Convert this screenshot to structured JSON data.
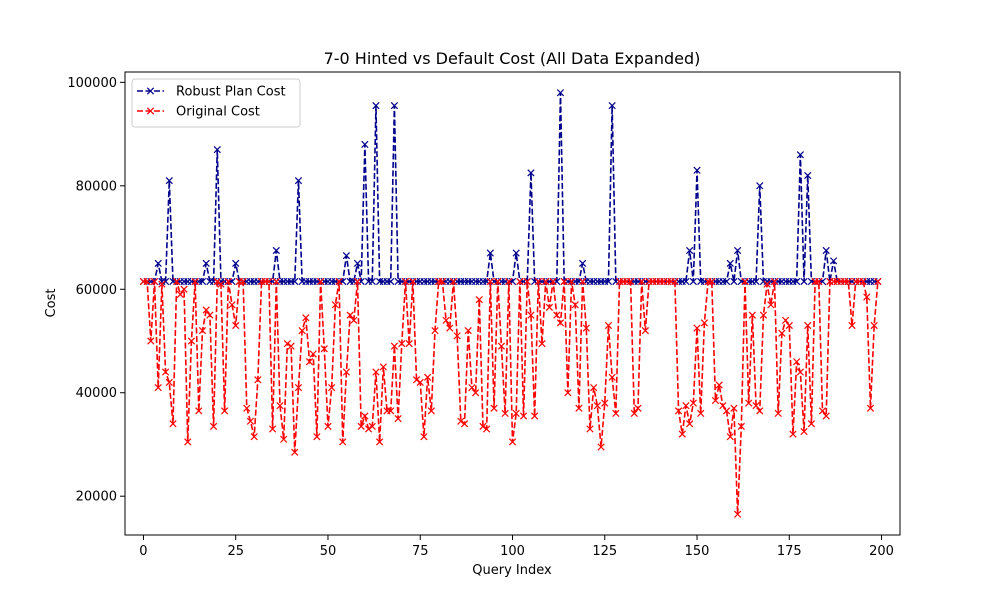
{
  "chart_data": {
    "type": "line",
    "title": "7-0 Hinted vs Default Cost (All Data Expanded)",
    "xlabel": "Query Index",
    "ylabel": "Cost",
    "xlim": [
      -5,
      205
    ],
    "ylim": [
      12500,
      102000
    ],
    "xticks": [
      0,
      25,
      50,
      75,
      100,
      125,
      150,
      175,
      200
    ],
    "yticks": [
      20000,
      40000,
      60000,
      80000,
      100000
    ],
    "grid": false,
    "legend": "top-left",
    "series": [
      {
        "name": "Robust Plan Cost",
        "color": "#00008b",
        "style": "dashed",
        "marker": "x",
        "default": 61500,
        "overrides": [
          [
            4,
            65000
          ],
          [
            7,
            81000
          ],
          [
            17,
            65000
          ],
          [
            20,
            87000
          ],
          [
            25,
            65000
          ],
          [
            36,
            67500
          ],
          [
            42,
            81000
          ],
          [
            55,
            66500
          ],
          [
            58,
            65000
          ],
          [
            60,
            88000
          ],
          [
            63,
            95500
          ],
          [
            68,
            95500
          ],
          [
            94,
            67000
          ],
          [
            101,
            67000
          ],
          [
            105,
            82500
          ],
          [
            113,
            98000
          ],
          [
            119,
            65000
          ],
          [
            127,
            95500
          ],
          [
            148,
            67500
          ],
          [
            150,
            83000
          ],
          [
            159,
            65000
          ],
          [
            161,
            67500
          ],
          [
            167,
            80000
          ],
          [
            178,
            86000
          ],
          [
            180,
            82000
          ],
          [
            185,
            67500
          ],
          [
            187,
            65500
          ]
        ]
      },
      {
        "name": "Original Cost",
        "color": "#ff0000",
        "style": "dashed",
        "marker": "x",
        "default": 61500,
        "overrides": [
          [
            2,
            50000
          ],
          [
            4,
            41000
          ],
          [
            5,
            61000
          ],
          [
            6,
            44000
          ],
          [
            7,
            42000
          ],
          [
            8,
            34000
          ],
          [
            10,
            59000
          ],
          [
            11,
            60000
          ],
          [
            12,
            30500
          ],
          [
            13,
            50000
          ],
          [
            15,
            36500
          ],
          [
            16,
            52000
          ],
          [
            17,
            56000
          ],
          [
            18,
            55000
          ],
          [
            19,
            33500
          ],
          [
            21,
            61000
          ],
          [
            22,
            36500
          ],
          [
            24,
            57000
          ],
          [
            25,
            53000
          ],
          [
            28,
            37000
          ],
          [
            29,
            34500
          ],
          [
            30,
            31500
          ],
          [
            31,
            42500
          ],
          [
            35,
            33000
          ],
          [
            37,
            37500
          ],
          [
            38,
            31000
          ],
          [
            39,
            49500
          ],
          [
            40,
            49000
          ],
          [
            41,
            28500
          ],
          [
            42,
            41000
          ],
          [
            43,
            52000
          ],
          [
            44,
            54500
          ],
          [
            45,
            46000
          ],
          [
            46,
            47500
          ],
          [
            47,
            31500
          ],
          [
            49,
            48500
          ],
          [
            50,
            33500
          ],
          [
            51,
            41000
          ],
          [
            52,
            57000
          ],
          [
            54,
            30500
          ],
          [
            55,
            44000
          ],
          [
            56,
            55000
          ],
          [
            57,
            54000
          ],
          [
            59,
            33500
          ],
          [
            60,
            35500
          ],
          [
            61,
            33000
          ],
          [
            62,
            33500
          ],
          [
            63,
            44000
          ],
          [
            64,
            30500
          ],
          [
            65,
            45000
          ],
          [
            66,
            36500
          ],
          [
            67,
            36500
          ],
          [
            68,
            49000
          ],
          [
            69,
            35000
          ],
          [
            70,
            49500
          ],
          [
            72,
            49500
          ],
          [
            74,
            42500
          ],
          [
            75,
            42000
          ],
          [
            76,
            31500
          ],
          [
            77,
            43000
          ],
          [
            78,
            36500
          ],
          [
            79,
            52000
          ],
          [
            82,
            54000
          ],
          [
            83,
            52500
          ],
          [
            85,
            51000
          ],
          [
            86,
            34500
          ],
          [
            87,
            34000
          ],
          [
            88,
            52000
          ],
          [
            89,
            41000
          ],
          [
            90,
            40000
          ],
          [
            91,
            58000
          ],
          [
            92,
            33500
          ],
          [
            93,
            33000
          ],
          [
            95,
            37000
          ],
          [
            97,
            49000
          ],
          [
            98,
            36000
          ],
          [
            100,
            30500
          ],
          [
            101,
            36000
          ],
          [
            103,
            35500
          ],
          [
            105,
            55000
          ],
          [
            106,
            35500
          ],
          [
            108,
            49500
          ],
          [
            110,
            56500
          ],
          [
            112,
            55000
          ],
          [
            113,
            53500
          ],
          [
            115,
            40000
          ],
          [
            117,
            57000
          ],
          [
            118,
            37000
          ],
          [
            120,
            52500
          ],
          [
            121,
            33000
          ],
          [
            122,
            41000
          ],
          [
            123,
            37500
          ],
          [
            124,
            29500
          ],
          [
            125,
            38000
          ],
          [
            126,
            53000
          ],
          [
            127,
            43000
          ],
          [
            128,
            36000
          ],
          [
            133,
            36000
          ],
          [
            134,
            37000
          ],
          [
            136,
            52000
          ],
          [
            145,
            36500
          ],
          [
            146,
            32000
          ],
          [
            147,
            37500
          ],
          [
            148,
            34000
          ],
          [
            149,
            38000
          ],
          [
            150,
            52500
          ],
          [
            151,
            36000
          ],
          [
            152,
            53500
          ],
          [
            155,
            38500
          ],
          [
            156,
            41500
          ],
          [
            157,
            37500
          ],
          [
            158,
            36500
          ],
          [
            159,
            31500
          ],
          [
            160,
            37000
          ],
          [
            161,
            16500
          ],
          [
            162,
            33500
          ],
          [
            164,
            38000
          ],
          [
            165,
            55000
          ],
          [
            166,
            37500
          ],
          [
            167,
            36500
          ],
          [
            168,
            55000
          ],
          [
            169,
            61000
          ],
          [
            170,
            57000
          ],
          [
            172,
            36000
          ],
          [
            173,
            51500
          ],
          [
            174,
            54000
          ],
          [
            175,
            53000
          ],
          [
            176,
            32000
          ],
          [
            177,
            46000
          ],
          [
            178,
            44000
          ],
          [
            179,
            32500
          ],
          [
            180,
            53000
          ],
          [
            181,
            34000
          ],
          [
            184,
            36500
          ],
          [
            185,
            35500
          ],
          [
            192,
            53000
          ],
          [
            196,
            58500
          ],
          [
            197,
            37000
          ],
          [
            198,
            53000
          ]
        ]
      }
    ]
  }
}
